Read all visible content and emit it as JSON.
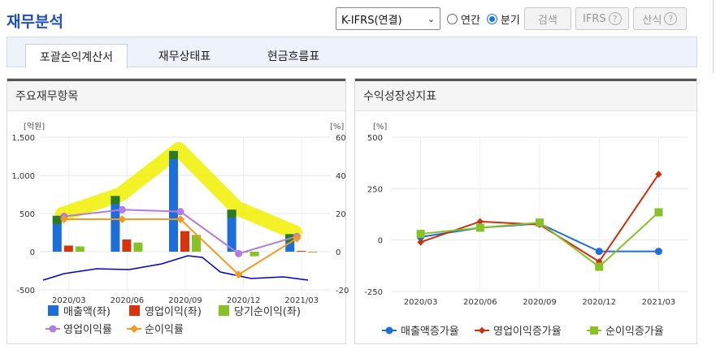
{
  "page_title": "재무분석",
  "controls": {
    "standard_select": "K-IFRS(연결)",
    "radio_annual": "연간",
    "radio_quarterly": "분기",
    "search_button": "검색",
    "ifrs_button": "IFRS",
    "formula_button": "산식",
    "help_glyph": "?"
  },
  "tabs": [
    {
      "label": "포괄손익계산서",
      "active": true
    },
    {
      "label": "재무상태표",
      "active": false
    },
    {
      "label": "현금흐름표",
      "active": false
    }
  ],
  "left_panel": {
    "title": "주요재무항목",
    "chart_data": {
      "type": "bar",
      "categories": [
        "2020/03",
        "2020/06",
        "2020/09",
        "2020/12",
        "2021/03"
      ],
      "y_left_label": "[억원]",
      "y_right_label": "[%]",
      "y_left_ticks": [
        "1,500",
        "1,000",
        "500",
        "0",
        "-500"
      ],
      "y_right_ticks": [
        "60",
        "40",
        "20",
        "0",
        "-20"
      ],
      "y_left_range": [
        -500,
        1500
      ],
      "y_right_range": [
        -20,
        60
      ],
      "series": [
        {
          "name": "매출액(좌)",
          "kind": "bar",
          "axis": "left",
          "color": "#1c6fd8",
          "values": [
            470,
            730,
            1320,
            550,
            230
          ]
        },
        {
          "name": "영업이익(좌)",
          "kind": "bar",
          "axis": "left",
          "color": "#d9330b",
          "values": [
            80,
            160,
            270,
            0,
            10
          ]
        },
        {
          "name": "당기순이익(좌)",
          "kind": "bar",
          "axis": "left",
          "color": "#86c226",
          "values": [
            70,
            120,
            220,
            -60,
            -10
          ]
        },
        {
          "name": "영업이익률",
          "kind": "line",
          "axis": "right",
          "color": "#b07de0",
          "values": [
            18.5,
            22,
            21,
            -1,
            8
          ]
        },
        {
          "name": "순이익률",
          "kind": "line",
          "axis": "right",
          "color": "#f59a1e",
          "values": [
            17,
            17,
            17,
            -12,
            7
          ]
        }
      ],
      "highlight_color": "#f0f000",
      "trend_color": "#0000cc"
    }
  },
  "right_panel": {
    "title": "수익성장성지표",
    "chart_data": {
      "type": "line",
      "categories": [
        "2020/03",
        "2020/06",
        "2020/09",
        "2020/12",
        "2021/03"
      ],
      "y_label": "[%]",
      "y_ticks": [
        "500",
        "250",
        "0",
        "-250"
      ],
      "y_range": [
        -250,
        500
      ],
      "series": [
        {
          "name": "매출액증가율",
          "color": "#1c6fd8",
          "marker": "circle",
          "values": [
            15,
            60,
            80,
            -55,
            -55
          ]
        },
        {
          "name": "영업이익증가율",
          "color": "#c9300f",
          "marker": "diamond",
          "values": [
            -10,
            90,
            75,
            -105,
            320
          ]
        },
        {
          "name": "순이익증가율",
          "color": "#86c226",
          "marker": "square",
          "values": [
            30,
            60,
            85,
            -130,
            135
          ]
        }
      ]
    }
  }
}
